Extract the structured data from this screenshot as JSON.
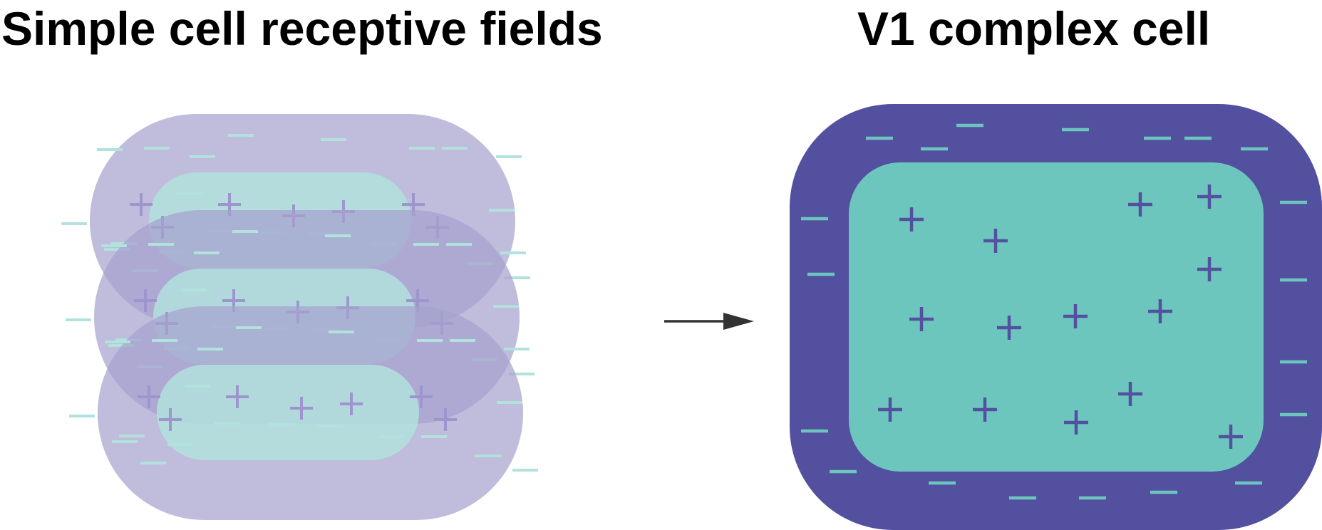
{
  "titles": {
    "left": "Simple cell receptive fields",
    "right": "V1 complex cell"
  },
  "symbols": {
    "plus": "+",
    "minus": "−"
  },
  "colors": {
    "simple_surround": "#a6a2cf",
    "simple_center": "#b2e2dd",
    "simple_plus": "#9f95ce",
    "simple_minus": "#b2e2dd",
    "complex_surround": "#5350a0",
    "complex_center": "#6dc6be",
    "complex_plus": "#5350a0",
    "complex_minus": "#6dc6be",
    "arrow": "#333333",
    "background": "#ffffff"
  }
}
